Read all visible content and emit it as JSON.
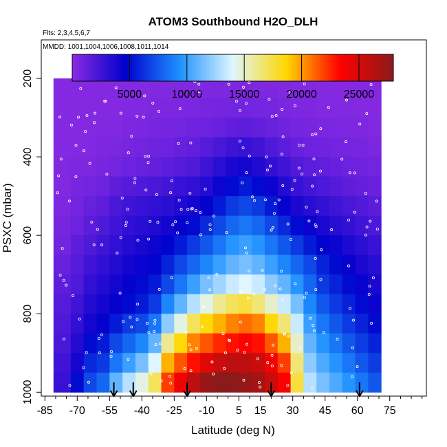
{
  "chart_data": {
    "type": "heatmap",
    "title": "ATOM3 Southbound H2O_DLH",
    "flights_note": "Flts: 2,3,4,5,6,7",
    "dates_note": "MMDD: 1001,1004,1006,1008,1011,1014",
    "xlabel": "Latitude (deg N)",
    "ylabel": "PSXC (mbar)",
    "xlim": [
      -87,
      92
    ],
    "ylim": [
      1010,
      100
    ],
    "x_ticks": [
      -85,
      -70,
      -55,
      -40,
      -25,
      -10,
      5,
      15,
      30,
      45,
      60,
      75
    ],
    "x_tick_labels": [
      "-85",
      "-70",
      "-55",
      "-40",
      "-25",
      "-10",
      "5",
      "15",
      "30",
      "45",
      "60",
      "75"
    ],
    "y_ticks": [
      200,
      400,
      600,
      800,
      1000
    ],
    "y_tick_labels": [
      "200",
      "400",
      "600",
      "800",
      "1000"
    ],
    "colorbar": {
      "range": [
        0,
        28000
      ],
      "ticks": [
        5000,
        10000,
        15000,
        20000,
        25000
      ],
      "tick_labels": [
        "5000",
        "10000",
        "15000",
        "20000",
        "25000"
      ],
      "colors": [
        "#8a2be2",
        "#0000cd",
        "#1e90ff",
        "#dff6ff",
        "#ffd700",
        "#ff0000",
        "#8b1a1a"
      ]
    },
    "pressure_levels": [
      175,
      225,
      275,
      325,
      375,
      425,
      475,
      525,
      575,
      625,
      675,
      725,
      775,
      825,
      875,
      925,
      975
    ],
    "columns": [
      {
        "lat": -78,
        "top": 220,
        "values": [
          0,
          200,
          200,
          200,
          200,
          300,
          300,
          400,
          600,
          800,
          1200,
          1500,
          1800,
          2000,
          2200,
          2500,
          2800
        ]
      },
      {
        "lat": -70,
        "top": 220,
        "values": [
          0,
          200,
          200,
          200,
          200,
          400,
          600,
          800,
          1000,
          1500,
          1800,
          2000,
          2500,
          3000,
          3500,
          4000,
          5000
        ]
      },
      {
        "lat": -64,
        "top": 220,
        "values": [
          0,
          200,
          200,
          200,
          300,
          400,
          800,
          1200,
          1600,
          2000,
          2500,
          3000,
          3500,
          4000,
          5000,
          6000,
          7000
        ]
      },
      {
        "lat": -58,
        "top": 175,
        "values": [
          200,
          200,
          200,
          300,
          400,
          600,
          1000,
          1500,
          2000,
          2500,
          3000,
          3500,
          4000,
          4500,
          5500,
          6500,
          8000
        ]
      },
      {
        "lat": -52,
        "top": 175,
        "values": [
          200,
          200,
          200,
          300,
          500,
          800,
          1500,
          2200,
          2500,
          3000,
          3500,
          4000,
          4500,
          5500,
          7000,
          8500,
          11000
        ]
      },
      {
        "lat": -46,
        "top": 175,
        "values": [
          200,
          200,
          300,
          400,
          600,
          1000,
          1800,
          2500,
          3000,
          3500,
          4000,
          4500,
          5000,
          6500,
          8000,
          10000,
          13000
        ]
      },
      {
        "lat": -40,
        "top": 175,
        "values": [
          200,
          200,
          300,
          500,
          800,
          1200,
          2000,
          2800,
          3300,
          3800,
          4300,
          5000,
          5500,
          7000,
          9000,
          11500,
          14500
        ]
      },
      {
        "lat": -34,
        "top": 175,
        "values": [
          200,
          300,
          400,
          600,
          900,
          1300,
          2200,
          3000,
          3600,
          4200,
          4800,
          5500,
          6500,
          8500,
          11000,
          14000,
          17000
        ]
      },
      {
        "lat": -28,
        "top": 175,
        "values": [
          200,
          300,
          400,
          700,
          1000,
          1500,
          2400,
          3200,
          4000,
          4800,
          5800,
          7000,
          9000,
          12000,
          16000,
          19500,
          22000
        ]
      },
      {
        "lat": -22,
        "top": 175,
        "values": [
          300,
          300,
          500,
          800,
          1200,
          1800,
          2800,
          3600,
          4500,
          5500,
          7000,
          8500,
          11000,
          14500,
          18500,
          21500,
          24000
        ]
      },
      {
        "lat": -16,
        "top": 175,
        "values": [
          300,
          300,
          500,
          900,
          1400,
          2000,
          3000,
          4000,
          5000,
          6500,
          8000,
          10000,
          13000,
          17000,
          20500,
          23000,
          26000
        ]
      },
      {
        "lat": -10,
        "top": 175,
        "values": [
          300,
          400,
          600,
          1000,
          1800,
          2600,
          3500,
          4500,
          6000,
          7500,
          9000,
          11500,
          14500,
          18500,
          21500,
          24500,
          27500
        ]
      },
      {
        "lat": -4,
        "top": 175,
        "values": [
          300,
          400,
          700,
          1200,
          2200,
          3200,
          4200,
          5500,
          7000,
          8500,
          10000,
          12500,
          16000,
          19500,
          22500,
          25500,
          28000
        ]
      },
      {
        "lat": 2,
        "top": 175,
        "values": [
          300,
          400,
          800,
          1400,
          2600,
          3800,
          5000,
          6500,
          8000,
          9500,
          11000,
          13500,
          17000,
          20500,
          23000,
          26000,
          28000
        ]
      },
      {
        "lat": 8,
        "top": 175,
        "values": [
          300,
          400,
          800,
          1500,
          2800,
          4000,
          5500,
          7000,
          8500,
          10000,
          11500,
          14000,
          17500,
          21000,
          23500,
          26000,
          27500
        ]
      },
      {
        "lat": 14,
        "top": 175,
        "values": [
          300,
          400,
          700,
          1300,
          2500,
          3600,
          5000,
          6500,
          8000,
          9500,
          11000,
          13500,
          16500,
          20500,
          23000,
          25500,
          27000
        ]
      },
      {
        "lat": 20,
        "top": 175,
        "values": [
          300,
          400,
          600,
          1100,
          2000,
          3000,
          4300,
          5500,
          7000,
          8500,
          10000,
          12000,
          15000,
          18500,
          21500,
          24000,
          25500
        ]
      },
      {
        "lat": 26,
        "top": 175,
        "values": [
          300,
          300,
          500,
          900,
          1600,
          2500,
          3500,
          4500,
          6000,
          7500,
          9000,
          11000,
          13500,
          16500,
          19500,
          22000,
          23500
        ]
      },
      {
        "lat": 32,
        "top": 175,
        "values": [
          200,
          300,
          400,
          700,
          1200,
          1900,
          2800,
          3800,
          5000,
          6500,
          8000,
          9500,
          11500,
          13500,
          15000,
          16500,
          17500
        ]
      },
      {
        "lat": 38,
        "top": 175,
        "values": [
          200,
          300,
          400,
          600,
          1000,
          1600,
          2400,
          3300,
          4300,
          5500,
          7000,
          8000,
          9000,
          10000,
          11000,
          12000,
          13000
        ]
      },
      {
        "lat": 44,
        "top": 175,
        "values": [
          200,
          200,
          300,
          500,
          900,
          1400,
          2100,
          2900,
          3800,
          4800,
          5800,
          6500,
          7500,
          8500,
          9500,
          10500,
          11500
        ]
      },
      {
        "lat": 50,
        "top": 175,
        "values": [
          200,
          200,
          300,
          500,
          800,
          1200,
          1800,
          2500,
          3300,
          4200,
          5000,
          5800,
          6500,
          7500,
          8500,
          9500,
          10500
        ]
      },
      {
        "lat": 56,
        "top": 175,
        "values": [
          200,
          200,
          300,
          400,
          700,
          1000,
          1500,
          2200,
          2900,
          3700,
          4400,
          5000,
          5700,
          6500,
          7500,
          8500,
          9500
        ]
      },
      {
        "lat": 62,
        "top": 175,
        "values": [
          200,
          200,
          200,
          400,
          600,
          900,
          1300,
          1900,
          2500,
          3200,
          3800,
          4400,
          5000,
          5800,
          6600,
          7500,
          8500
        ]
      },
      {
        "lat": 68,
        "top": 175,
        "values": [
          200,
          200,
          200,
          300,
          500,
          800,
          1100,
          1600,
          2100,
          2700,
          3300,
          3800,
          4300,
          5000,
          5800,
          6600,
          7500
        ]
      }
    ],
    "profile_arrows_lat": [
      -53,
      -44,
      -19,
      20,
      61
    ]
  }
}
